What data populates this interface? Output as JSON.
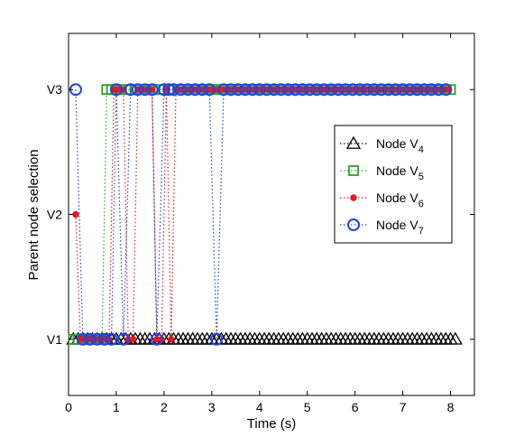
{
  "chart_data": {
    "type": "line",
    "xlabel": "Time (s)",
    "ylabel": "Parent node selection",
    "xlim": [
      0,
      8.5
    ],
    "ylim": [
      0.55,
      3.45
    ],
    "x_ticks": [
      "0",
      "1",
      "2",
      "3",
      "4",
      "5",
      "6",
      "7",
      "8"
    ],
    "y_categories": [
      {
        "value": 1,
        "label": "V1"
      },
      {
        "value": 2,
        "label": "V2"
      },
      {
        "value": 3,
        "label": "V3"
      }
    ],
    "legend_position": "right",
    "grid": false,
    "series": [
      {
        "name_prefix": "Node V",
        "name_subscript": "4",
        "marker": "triangle",
        "color": "#000000",
        "line_style": "dotted",
        "x": [
          0.1,
          0.2,
          0.3,
          0.4,
          0.5,
          0.6,
          0.7,
          0.8,
          0.9,
          1.0,
          1.1,
          1.2,
          1.3,
          1.4,
          1.5,
          1.6,
          1.7,
          1.8,
          1.9,
          2.0,
          2.1,
          2.2,
          2.3,
          2.4,
          2.5,
          2.6,
          2.7,
          2.8,
          2.9,
          3.0,
          3.1,
          3.2,
          3.3,
          3.4,
          3.5,
          3.6,
          3.7,
          3.8,
          3.9,
          4.0,
          4.1,
          4.2,
          4.3,
          4.4,
          4.5,
          4.6,
          4.7,
          4.8,
          4.9,
          5.0,
          5.1,
          5.2,
          5.3,
          5.4,
          5.5,
          5.6,
          5.7,
          5.8,
          5.9,
          6.0,
          6.1,
          6.2,
          6.3,
          6.4,
          6.5,
          6.6,
          6.7,
          6.8,
          6.9,
          7.0,
          7.1,
          7.2,
          7.3,
          7.4,
          7.5,
          7.6,
          7.7,
          7.8,
          7.9,
          8.0,
          8.1
        ],
        "y": [
          1,
          1,
          1,
          1,
          1,
          1,
          1,
          1,
          1,
          1,
          1,
          1,
          1,
          1,
          1,
          1,
          1,
          1,
          1,
          1,
          1,
          1,
          1,
          1,
          1,
          1,
          1,
          1,
          1,
          1,
          1,
          1,
          1,
          1,
          1,
          1,
          1,
          1,
          1,
          1,
          1,
          1,
          1,
          1,
          1,
          1,
          1,
          1,
          1,
          1,
          1,
          1,
          1,
          1,
          1,
          1,
          1,
          1,
          1,
          1,
          1,
          1,
          1,
          1,
          1,
          1,
          1,
          1,
          1,
          1,
          1,
          1,
          1,
          1,
          1,
          1,
          1,
          1,
          1,
          1,
          1
        ]
      },
      {
        "name_prefix": "Node V",
        "name_subscript": "5",
        "marker": "square",
        "color": "#2ca02c",
        "line_style": "dotted",
        "x": [
          0.1,
          0.2,
          0.3,
          0.4,
          0.5,
          0.6,
          0.7,
          0.8,
          0.9,
          1.0,
          1.1,
          1.2,
          1.3,
          1.4,
          1.5,
          1.6,
          1.7,
          1.8,
          1.9,
          2.0,
          2.1,
          2.2,
          2.3,
          2.4,
          2.5,
          2.6,
          2.7,
          2.8,
          2.9,
          3.0,
          3.1,
          3.2,
          3.3,
          3.4,
          3.5,
          3.6,
          3.7,
          3.8,
          3.9,
          4.0,
          4.1,
          4.2,
          4.3,
          4.4,
          4.5,
          4.6,
          4.7,
          4.8,
          4.9,
          5.0,
          5.1,
          5.2,
          5.3,
          5.4,
          5.5,
          5.6,
          5.7,
          5.8,
          5.9,
          6.0,
          6.1,
          6.2,
          6.3,
          6.4,
          6.5,
          6.6,
          6.7,
          6.8,
          6.9,
          7.0,
          7.1,
          7.2,
          7.3,
          7.4,
          7.5,
          7.6,
          7.7,
          7.8,
          7.9,
          8.0
        ],
        "y": [
          1,
          1,
          1,
          1,
          1,
          1,
          1,
          3,
          3,
          3,
          3,
          3,
          3,
          3,
          3,
          3,
          3,
          3,
          3,
          3,
          3,
          3,
          3,
          3,
          3,
          3,
          3,
          3,
          3,
          3,
          3,
          3,
          3,
          3,
          3,
          3,
          3,
          3,
          3,
          3,
          3,
          3,
          3,
          3,
          3,
          3,
          3,
          3,
          3,
          3,
          3,
          3,
          3,
          3,
          3,
          3,
          3,
          3,
          3,
          3,
          3,
          3,
          3,
          3,
          3,
          3,
          3,
          3,
          3,
          3,
          3,
          3,
          3,
          3,
          3,
          3,
          3,
          3,
          3,
          3
        ]
      },
      {
        "name_prefix": "Node V",
        "name_subscript": "6",
        "marker": "dot",
        "color": "#e31a1c",
        "line_style": "dotted",
        "x": [
          0.15,
          0.25,
          0.35,
          0.45,
          0.55,
          0.65,
          0.75,
          0.85,
          0.95,
          1.05,
          1.15,
          1.25,
          1.35,
          1.45,
          1.55,
          1.65,
          1.75,
          1.85,
          1.95,
          2.05,
          2.15,
          2.25,
          2.35,
          2.45,
          2.55,
          2.65,
          2.75,
          2.85,
          2.95,
          3.05,
          3.15,
          3.25,
          3.35,
          3.45,
          3.55,
          3.65,
          3.75,
          3.85,
          3.95,
          4.05,
          4.15,
          4.25,
          4.35,
          4.45,
          4.55,
          4.65,
          4.75,
          4.85,
          4.95,
          5.05,
          5.15,
          5.25,
          5.35,
          5.45,
          5.55,
          5.65,
          5.75,
          5.85,
          5.95,
          6.05,
          6.15,
          6.25,
          6.35,
          6.45,
          6.55,
          6.65,
          6.75,
          6.85,
          6.95,
          7.05,
          7.15,
          7.25,
          7.35,
          7.45,
          7.55,
          7.65,
          7.75,
          7.85,
          7.95
        ],
        "y": [
          2,
          1,
          1,
          1,
          1,
          1,
          1,
          1,
          3,
          3,
          3,
          1,
          1,
          3,
          3,
          3,
          3,
          1,
          1,
          3,
          1,
          3,
          3,
          3,
          3,
          3,
          3,
          3,
          3,
          3,
          3,
          3,
          3,
          3,
          3,
          3,
          3,
          3,
          3,
          3,
          3,
          3,
          3,
          3,
          3,
          3,
          3,
          3,
          3,
          3,
          3,
          3,
          3,
          3,
          3,
          3,
          3,
          3,
          3,
          3,
          3,
          3,
          3,
          3,
          3,
          3,
          3,
          3,
          3,
          3,
          3,
          3,
          3,
          3,
          3,
          3,
          3,
          3,
          3
        ]
      },
      {
        "name_prefix": "Node V",
        "name_subscript": "7",
        "marker": "circle",
        "color": "#1f45d6",
        "line_style": "dotted",
        "x": [
          0.15,
          0.3,
          0.45,
          0.6,
          0.75,
          0.9,
          1.0,
          1.15,
          1.3,
          1.45,
          1.6,
          1.75,
          1.85,
          2.0,
          2.1,
          2.2,
          2.35,
          2.5,
          2.65,
          2.8,
          2.95,
          3.1,
          3.25,
          3.4,
          3.55,
          3.7,
          3.85,
          4.0,
          4.15,
          4.3,
          4.45,
          4.6,
          4.75,
          4.9,
          5.05,
          5.2,
          5.35,
          5.5,
          5.65,
          5.8,
          5.95,
          6.1,
          6.25,
          6.4,
          6.55,
          6.7,
          6.85,
          7.0,
          7.15,
          7.3,
          7.45,
          7.6,
          7.75,
          7.9
        ],
        "y": [
          3,
          1,
          1,
          1,
          1,
          1,
          3,
          1,
          3,
          3,
          3,
          3,
          1,
          3,
          3,
          3,
          3,
          3,
          3,
          3,
          3,
          1,
          3,
          3,
          3,
          3,
          3,
          3,
          3,
          3,
          3,
          3,
          3,
          3,
          3,
          3,
          3,
          3,
          3,
          3,
          3,
          3,
          3,
          3,
          3,
          3,
          3,
          3,
          3,
          3,
          3,
          3,
          3,
          3
        ]
      }
    ]
  }
}
